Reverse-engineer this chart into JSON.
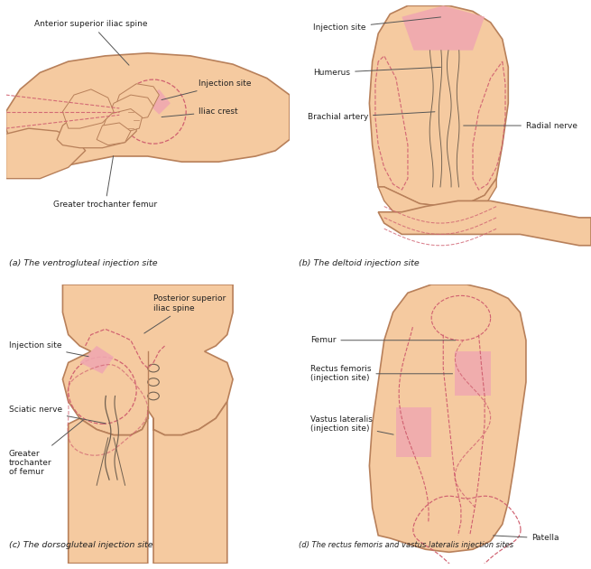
{
  "skin_color": "#F5CAA0",
  "skin_edge_color": "#B8805A",
  "skin_light": "#F8D8BC",
  "injection_pink": "#F0A8B0",
  "dashed_color": "#D06070",
  "line_color": "#555555",
  "text_color": "#222222",
  "bg_color": "#FFFFFF",
  "label_a": "(a) The ventrogluteal injection site",
  "label_b": "(b) The deltoid injection site",
  "label_c": "(c) The dorsogluteal injection site",
  "label_d": "(d) The rectus femoris and vastus lateralis injection sites"
}
